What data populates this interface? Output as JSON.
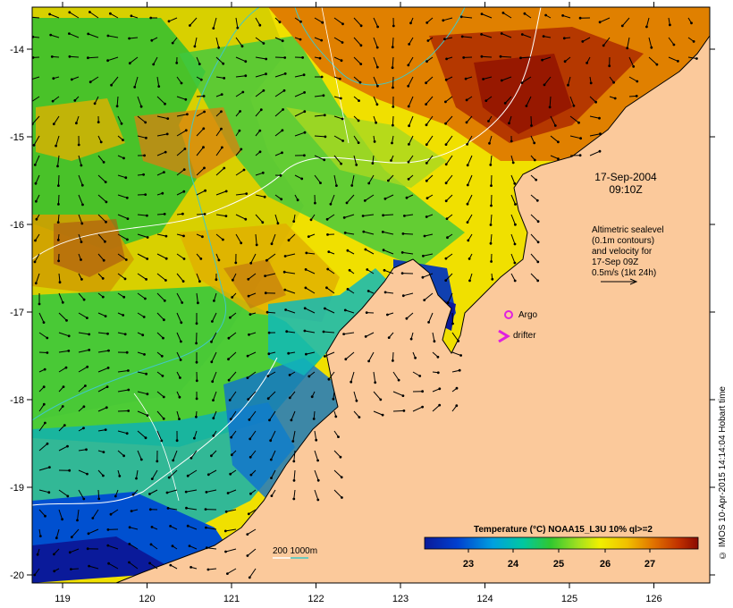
{
  "map": {
    "timestamp_date": "17-Sep-2004",
    "timestamp_time": "09:10Z",
    "legend_lines": [
      "Altimetric sealevel",
      "(0.1m contours)",
      "and velocity for",
      "17-Sep 09Z",
      "0.5m/s (1kt 24h)"
    ],
    "argo_label": "Argo",
    "drifter_label": "drifter",
    "depth_label": "200  1000m",
    "colorbar_title": "Temperature (°C) NOAA15_L3U 10% ql>=2",
    "colorbar_ticks": [
      "23",
      "24",
      "25",
      "26",
      "27"
    ],
    "credit": "© IMOS 10-Apr-2015 14:14:04 Hobart time",
    "x_ticks": [
      "119",
      "120",
      "121",
      "122",
      "123",
      "124",
      "125",
      "126"
    ],
    "y_ticks": [
      "-14",
      "-15",
      "-16",
      "-17",
      "-18",
      "-19",
      "-20"
    ],
    "colors": {
      "land": "#fbc99b",
      "depth_200": "#ffffff",
      "depth_1000": "#40c8c8",
      "argo": "#e020e0",
      "drifter": "#e020e0"
    }
  }
}
